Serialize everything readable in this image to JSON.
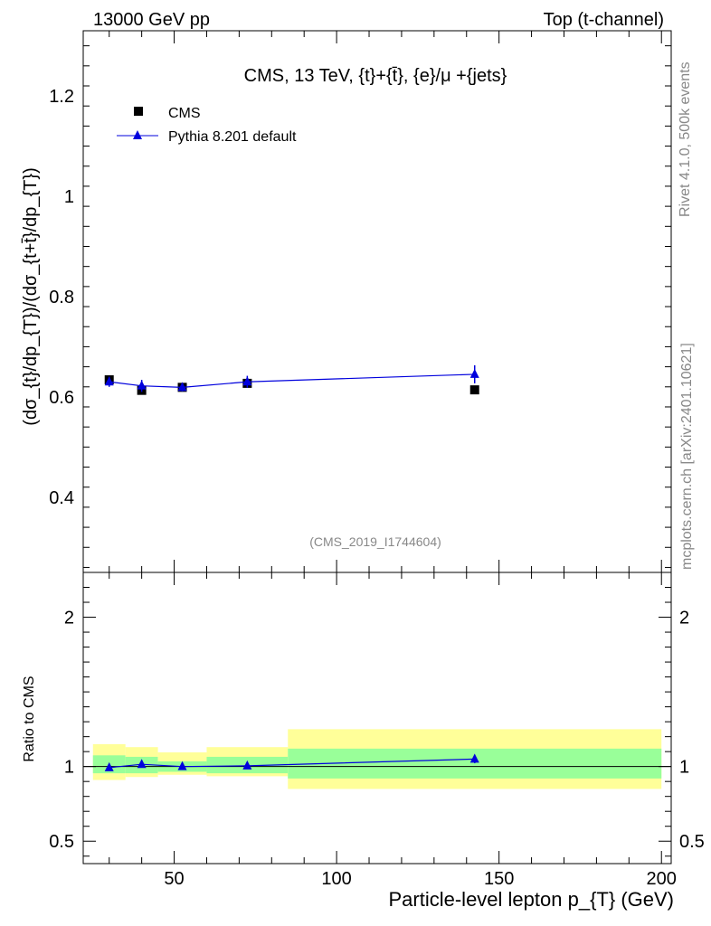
{
  "header": {
    "left": "13000 GeV pp",
    "right": "Top (t-channel)"
  },
  "side": {
    "rivet": "Rivet 4.1.0,  500k events",
    "mcplots": "mcplots.cern.ch [arXiv:2401.10621]"
  },
  "chart_data": {
    "type": "line",
    "title": "CMS, 13 TeV, {t}+{t̄}, {e}/μ +{jets}",
    "xlabel": "Particle-level lepton p_{T} (GeV)",
    "ylabel": "(dσ_{t}/dp_{T})/(dσ_{t+t̄}/dp_{T})",
    "ratio_ylabel": "Ratio to CMS",
    "analysis_id": "(CMS_2019_I1744604)",
    "xlim": [
      22,
      203
    ],
    "ylim": [
      0.25,
      1.33
    ],
    "ratio_ylim": [
      0.35,
      2.3
    ],
    "x_ticks": [
      50,
      100,
      150,
      200
    ],
    "x_tick_labels": [
      "50",
      "100",
      "150",
      "200"
    ],
    "y_ticks": [
      0.4,
      0.6,
      0.8,
      1.0,
      1.2
    ],
    "y_tick_labels": [
      "0.4",
      "0.6",
      "0.8",
      "1",
      "1.2"
    ],
    "ratio_ticks": [
      0.5,
      1,
      2
    ],
    "ratio_tick_labels": [
      "0.5",
      "1",
      "2"
    ],
    "bins": [
      [
        25,
        35
      ],
      [
        35,
        45
      ],
      [
        45,
        60
      ],
      [
        60,
        85
      ],
      [
        85,
        200
      ]
    ],
    "legend": [
      "CMS",
      "Pythia 8.201 default"
    ],
    "series": [
      {
        "name": "CMS",
        "color": "#000000",
        "marker": "square",
        "x": [
          30,
          40,
          52.5,
          72.5,
          142.5
        ],
        "values": [
          0.634,
          0.613,
          0.619,
          0.627,
          0.614
        ]
      },
      {
        "name": "Pythia 8.201 default",
        "color": "#0000dd",
        "marker": "triangle",
        "x": [
          30,
          40,
          52.5,
          72.5,
          142.5
        ],
        "values": [
          0.63,
          0.622,
          0.619,
          0.63,
          0.645
        ],
        "errors": [
          0.01,
          0.012,
          0.008,
          0.012,
          0.018
        ]
      }
    ],
    "ratio": {
      "x": [
        30,
        40,
        52.5,
        72.5,
        142.5
      ],
      "values": [
        0.993,
        1.015,
        1.0,
        1.005,
        1.05
      ],
      "errors": [
        0.015,
        0.018,
        0.012,
        0.018,
        0.028
      ],
      "band_inner": [
        [
          0.955,
          1.075
        ],
        [
          0.955,
          1.065
        ],
        [
          0.965,
          1.035
        ],
        [
          0.955,
          1.065
        ],
        [
          0.92,
          1.12
        ]
      ],
      "band_outer": [
        [
          0.91,
          1.15
        ],
        [
          0.93,
          1.13
        ],
        [
          0.945,
          1.095
        ],
        [
          0.935,
          1.13
        ],
        [
          0.85,
          1.25
        ]
      ]
    },
    "colors": {
      "band_inner": "#99ff99",
      "band_outer": "#ffff99",
      "mc": "#0000dd",
      "data": "#000000"
    }
  }
}
